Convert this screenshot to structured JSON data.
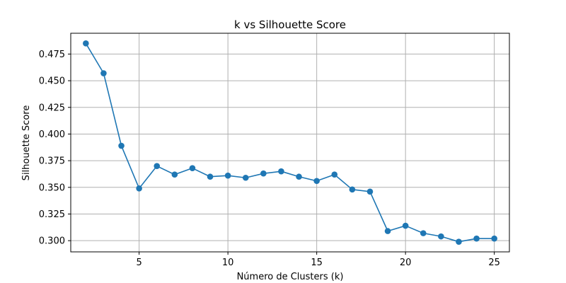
{
  "chart_data": {
    "type": "line",
    "title": "k vs Silhouette Score",
    "xlabel": "Número de Clusters (k)",
    "ylabel": "Silhouette Score",
    "xlim": [
      1.15,
      25.85
    ],
    "ylim": [
      0.2895,
      0.4945
    ],
    "xticks": [
      5,
      10,
      15,
      20,
      25
    ],
    "yticks": [
      0.3,
      0.325,
      0.35,
      0.375,
      0.4,
      0.425,
      0.45,
      0.475
    ],
    "ytick_decimals": 3,
    "grid": true,
    "color": "#1f77b4",
    "marker": "circle",
    "series": [
      {
        "x": [
          2,
          3,
          4,
          5,
          6,
          7,
          8,
          9,
          10,
          11,
          12,
          13,
          14,
          15,
          16,
          17,
          18,
          19,
          20,
          21,
          22,
          23,
          24,
          25
        ],
        "y": [
          0.485,
          0.457,
          0.389,
          0.349,
          0.37,
          0.362,
          0.368,
          0.36,
          0.361,
          0.359,
          0.363,
          0.365,
          0.36,
          0.356,
          0.362,
          0.348,
          0.346,
          0.309,
          0.314,
          0.307,
          0.304,
          0.299,
          0.302,
          0.302
        ]
      }
    ]
  }
}
